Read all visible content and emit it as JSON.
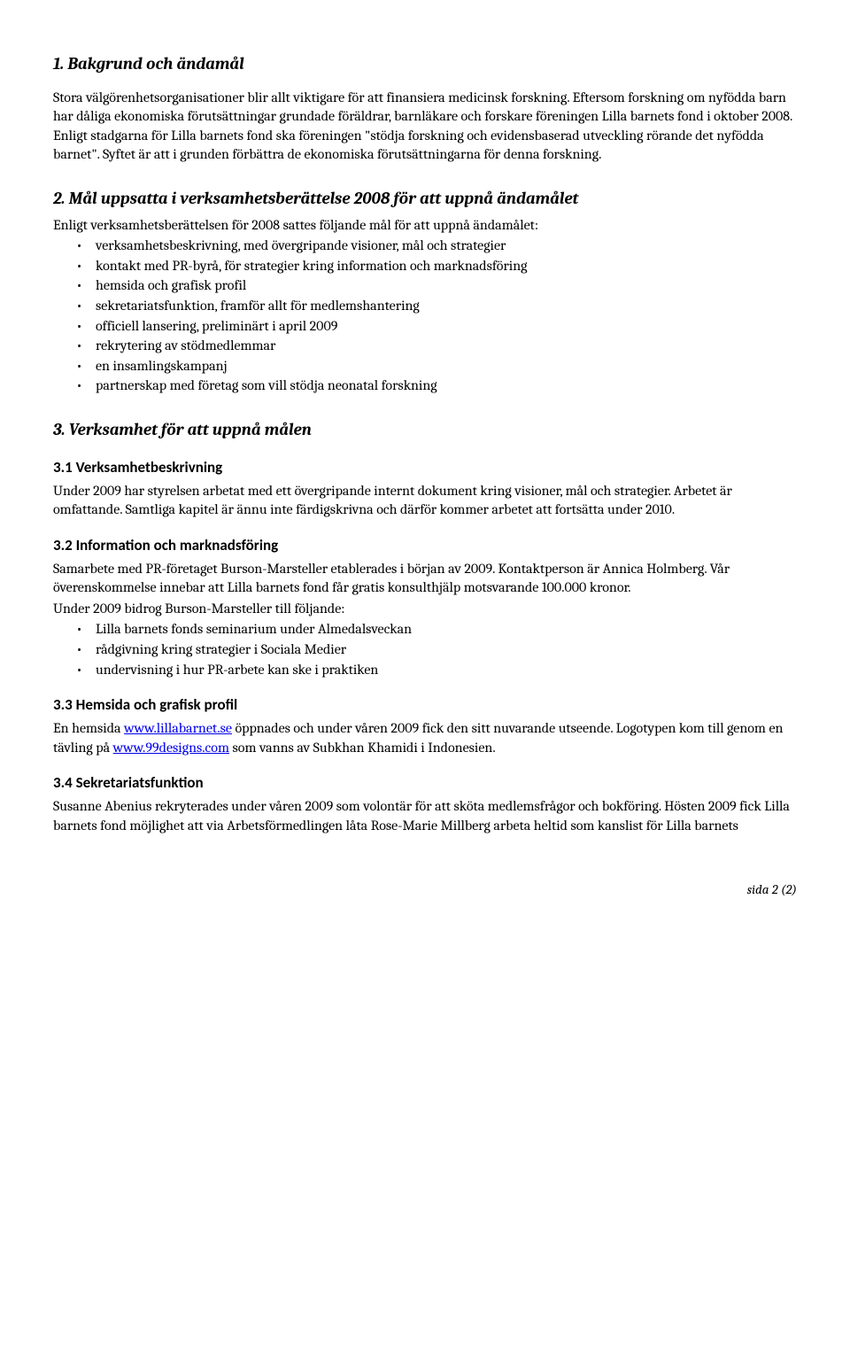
{
  "s1": {
    "title": "1. Bakgrund och ändamål",
    "p1": "Stora välgörenhetsorganisationer blir allt viktigare för att finansiera medicinsk forskning. Eftersom forskning om nyfödda barn har dåliga ekonomiska förutsättningar grundade föräldrar, barnläkare och forskare föreningen Lilla barnets fond i oktober 2008. Enligt stadgarna för Lilla barnets fond ska föreningen \"stödja forskning och evidensbaserad utveckling rörande det nyfödda barnet\". Syftet är att i grunden förbättra de ekonomiska förutsättningarna för denna forskning."
  },
  "s2": {
    "title": "2. Mål uppsatta i verksamhetsberättelse 2008 för att uppnå ändamålet",
    "intro": "Enligt verksamhetsberättelsen för 2008 sattes följande mål för att uppnå ändamålet:",
    "items": [
      "verksamhetsbeskrivning, med övergripande visioner, mål och strategier",
      "kontakt med PR-byrå, för strategier kring information och marknadsföring",
      "hemsida och grafisk profil",
      "sekretariatsfunktion, framför allt för medlemshantering",
      "officiell lansering, preliminärt i april 2009",
      "rekrytering av stödmedlemmar",
      "en insamlingskampanj",
      "partnerskap med företag som vill stödja neonatal forskning"
    ]
  },
  "s3": {
    "title": "3. Verksamhet för att uppnå målen",
    "s31": {
      "title": "3.1 Verksamhetbeskrivning",
      "p": "Under 2009 har styrelsen arbetat med ett övergripande internt dokument kring visioner, mål och strategier. Arbetet är omfattande. Samtliga kapitel är ännu inte färdigskrivna och därför kommer arbetet att fortsätta under 2010."
    },
    "s32": {
      "title": "3.2 Information och marknadsföring",
      "p1": "Samarbete med PR-företaget Burson-Marsteller etablerades i början av 2009. Kontaktperson är Annica Holmberg. Vår överenskommelse innebar att Lilla barnets fond får gratis konsulthjälp motsvarande 100.000 kronor.",
      "p2": "Under 2009 bidrog Burson-Marsteller till följande:",
      "items": [
        "Lilla barnets fonds seminarium under Almedalsveckan",
        "rådgivning kring strategier i Sociala Medier",
        "undervisning i hur PR-arbete kan ske i praktiken"
      ]
    },
    "s33": {
      "title": "3.3 Hemsida och grafisk profil",
      "pre1": "En hemsida ",
      "link1_text": "www.lillabarnet.se",
      "link1_href": "http://www.lillabarnet.se",
      "mid1": " öppnades och under våren 2009 fick den sitt nuvarande utseende. Logotypen kom till genom en tävling på ",
      "link2_text": "www.99designs.com",
      "link2_href": "http://www.99designs.com",
      "post1": " som vanns av Subkhan Khamidi i Indonesien."
    },
    "s34": {
      "title": "3.4 Sekretariatsfunktion",
      "p": "Susanne Abenius rekryterades under våren 2009 som volontär för att sköta medlemsfrågor och bokföring. Hösten 2009 fick Lilla barnets fond möjlighet att via Arbetsförmedlingen låta Rose-Marie Millberg arbeta heltid som kanslist för Lilla barnets"
    }
  },
  "footer": "sida 2 (2)"
}
